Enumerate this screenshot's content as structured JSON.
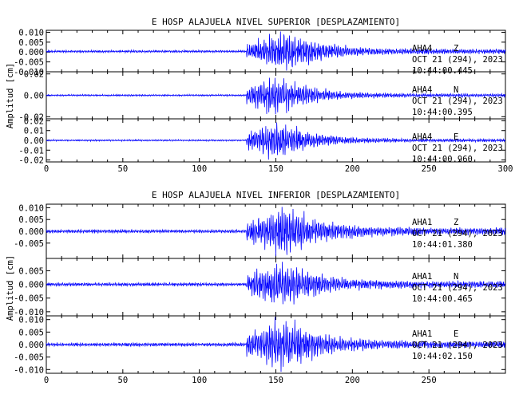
{
  "chart_data": [
    {
      "type": "line",
      "title": "E HOSP ALAJUELA NIVEL SUPERIOR [DESPLAZAMIENTO]",
      "ylabel": "Amplitud [cm]",
      "xlim": [
        0,
        300
      ],
      "xticks": [
        0,
        50,
        100,
        150,
        200,
        250,
        300
      ],
      "series_color": "#0000ff",
      "panels": [
        {
          "station": "AHA4",
          "component": "Z",
          "date": "OCT 21 (294), 2023",
          "time": "10:44:00.445",
          "ylim": [
            -0.01,
            0.011
          ],
          "yticks": [
            "0.010",
            "0.005",
            "0.000",
            "-0.005",
            "-0.010"
          ],
          "ytick_values": [
            0.01,
            0.005,
            0.0,
            -0.005,
            -0.01
          ],
          "envelope": {
            "noise": 0.0006,
            "onset": 131,
            "peak_time": 158,
            "peak": 0.0105,
            "coda_level": 0.0012,
            "baseline": 0.0003
          },
          "seed": 11
        },
        {
          "station": "AHA4",
          "component": "N",
          "date": "OCT 21 (294), 2023",
          "time": "10:44:00.395",
          "ylim": [
            -0.022,
            0.022
          ],
          "yticks": [
            "0.02",
            "0.00",
            "-0.02"
          ],
          "ytick_values": [
            0.02,
            0.0,
            -0.02
          ],
          "envelope": {
            "noise": 0.0008,
            "onset": 131,
            "peak_time": 150,
            "peak": 0.019,
            "coda_level": 0.0015,
            "baseline": 0.0
          },
          "seed": 23
        },
        {
          "station": "AHA4",
          "component": "E",
          "date": "OCT 21 (294), 2023",
          "time": "10:44:00.960",
          "ylim": [
            -0.022,
            0.022
          ],
          "yticks": [
            "0.02",
            "0.01",
            "0.00",
            "-0.01",
            "-0.02"
          ],
          "ytick_values": [
            0.02,
            0.01,
            0.0,
            -0.01,
            -0.02
          ],
          "envelope": {
            "noise": 0.0008,
            "onset": 131,
            "peak_time": 150,
            "peak": 0.021,
            "coda_level": 0.0015,
            "baseline": 0.0
          },
          "seed": 37
        }
      ]
    },
    {
      "type": "line",
      "title": "E HOSP ALAJUELA NIVEL INFERIOR [DESPLAZAMIENTO]",
      "ylabel": "Amplitud [cm]",
      "xlim": [
        0,
        300
      ],
      "xticks": [
        0,
        50,
        100,
        150,
        200,
        250
      ],
      "series_color": "#0000ff",
      "panels": [
        {
          "station": "AHA1",
          "component": "Z",
          "date": "OCT 21 (294), 2023",
          "time": "10:44:01.380",
          "ylim": [
            -0.0115,
            0.0115
          ],
          "yticks": [
            "0.010",
            "0.005",
            "0.000",
            "-0.005"
          ],
          "ytick_values": [
            0.01,
            0.005,
            0.0,
            -0.005
          ],
          "envelope": {
            "noise": 0.0007,
            "onset": 131,
            "peak_time": 158,
            "peak": 0.0105,
            "coda_level": 0.0015,
            "baseline": 0.0
          },
          "seed": 53
        },
        {
          "station": "AHA1",
          "component": "N",
          "date": "OCT 21 (294), 2023",
          "time": "10:44:00.465",
          "ylim": [
            -0.0115,
            0.0095
          ],
          "yticks": [
            "0.005",
            "0.000",
            "-0.005",
            "-0.010"
          ],
          "ytick_values": [
            0.005,
            0.0,
            -0.005,
            -0.01
          ],
          "envelope": {
            "noise": 0.0006,
            "onset": 131,
            "peak_time": 155,
            "peak": 0.0085,
            "coda_level": 0.0012,
            "baseline": 0.0
          },
          "seed": 71
        },
        {
          "station": "AHA1",
          "component": "E",
          "date": "OCT 21 (294), 2023",
          "time": "10:44:02.150",
          "ylim": [
            -0.0115,
            0.0115
          ],
          "yticks": [
            "0.010",
            "0.005",
            "0.000",
            "-0.005",
            "-0.010"
          ],
          "ytick_values": [
            0.01,
            0.005,
            0.0,
            -0.005,
            -0.01
          ],
          "envelope": {
            "noise": 0.0007,
            "onset": 131,
            "peak_time": 156,
            "peak": 0.0105,
            "coda_level": 0.0013,
            "baseline": 0.0
          },
          "seed": 89
        }
      ]
    }
  ]
}
